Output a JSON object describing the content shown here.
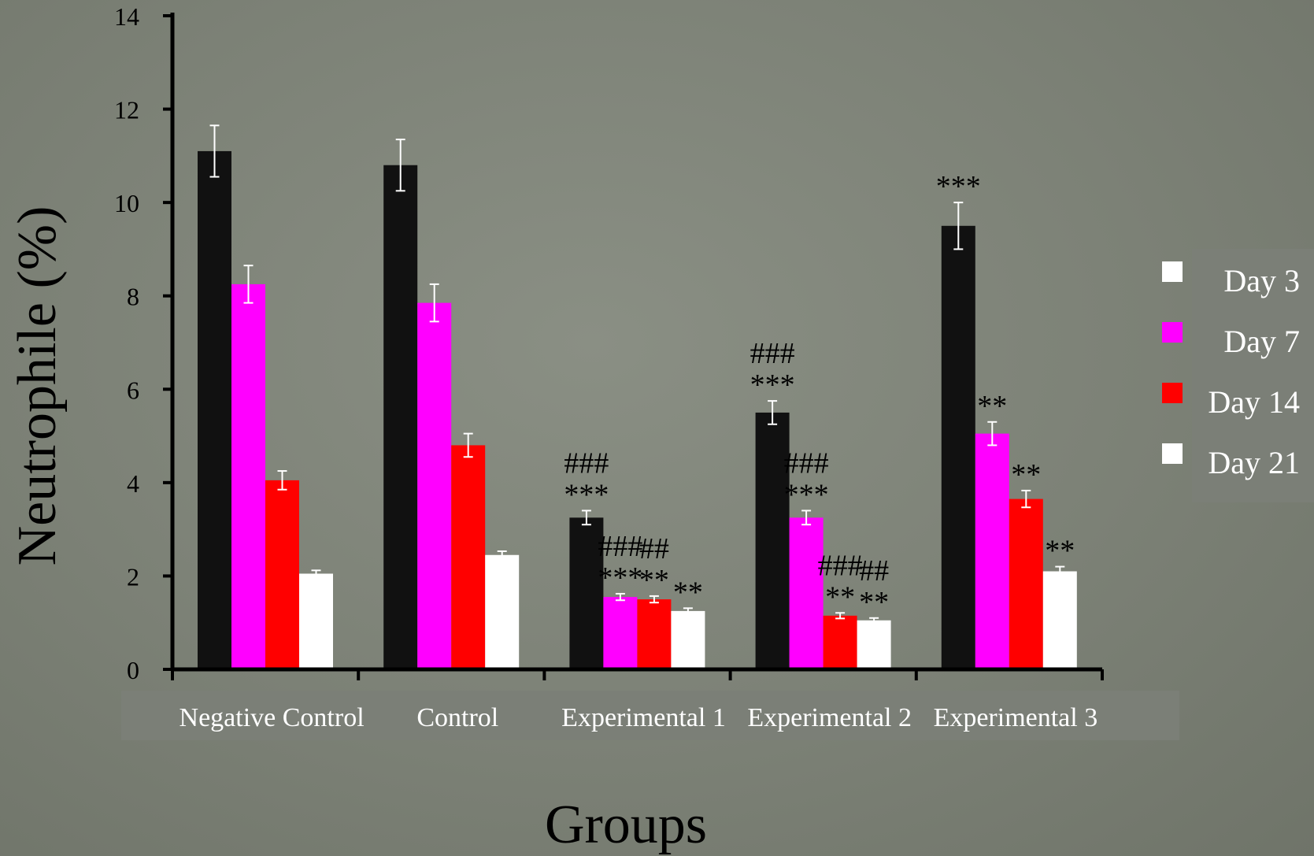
{
  "chart_data": {
    "type": "bar",
    "xlabel": "Groups",
    "ylabel": "Neutrophile (%)",
    "ylim": [
      0,
      14
    ],
    "yticks": [
      "0",
      "2",
      "4",
      "6",
      "8",
      "10",
      "12",
      "14"
    ],
    "categories": [
      "Negative Control",
      "Control",
      "Experimental 1",
      "Experimental 2",
      "Experimental 3"
    ],
    "legend_position": "right",
    "series": [
      {
        "name": "Day 3",
        "color": "#111111",
        "values": [
          11.1,
          10.8,
          3.25,
          5.5,
          9.5
        ],
        "errors": [
          0.55,
          0.55,
          0.15,
          0.25,
          0.5
        ]
      },
      {
        "name": "Day 7",
        "color": "#ff00ff",
        "values": [
          8.25,
          7.85,
          1.55,
          3.25,
          5.05
        ],
        "errors": [
          0.4,
          0.4,
          0.07,
          0.15,
          0.25
        ]
      },
      {
        "name": "Day 14",
        "color": "#ff0000",
        "values": [
          4.05,
          4.8,
          1.5,
          1.15,
          3.65
        ],
        "errors": [
          0.2,
          0.25,
          0.07,
          0.06,
          0.18
        ]
      },
      {
        "name": "Day 21",
        "color": "#ffffff",
        "values": [
          2.05,
          2.45,
          1.25,
          1.05,
          2.1
        ],
        "errors": [
          0.07,
          0.08,
          0.06,
          0.05,
          0.1
        ]
      }
    ],
    "annotations": [
      {
        "group": 2,
        "series": 0,
        "lines": [
          "###",
          "***"
        ]
      },
      {
        "group": 2,
        "series": 1,
        "lines": [
          "###",
          "***"
        ]
      },
      {
        "group": 2,
        "series": 2,
        "lines": [
          "##",
          "**"
        ]
      },
      {
        "group": 2,
        "series": 3,
        "lines": [
          "**"
        ]
      },
      {
        "group": 3,
        "series": 0,
        "lines": [
          "###",
          "***"
        ]
      },
      {
        "group": 3,
        "series": 1,
        "lines": [
          "###",
          "***"
        ]
      },
      {
        "group": 3,
        "series": 2,
        "lines": [
          "###",
          "**"
        ]
      },
      {
        "group": 3,
        "series": 3,
        "lines": [
          "##",
          "**"
        ]
      },
      {
        "group": 4,
        "series": 0,
        "lines": [
          "***"
        ]
      },
      {
        "group": 4,
        "series": 1,
        "lines": [
          "**"
        ]
      },
      {
        "group": 4,
        "series": 2,
        "lines": [
          "**"
        ]
      },
      {
        "group": 4,
        "series": 3,
        "lines": [
          "**"
        ]
      }
    ]
  }
}
